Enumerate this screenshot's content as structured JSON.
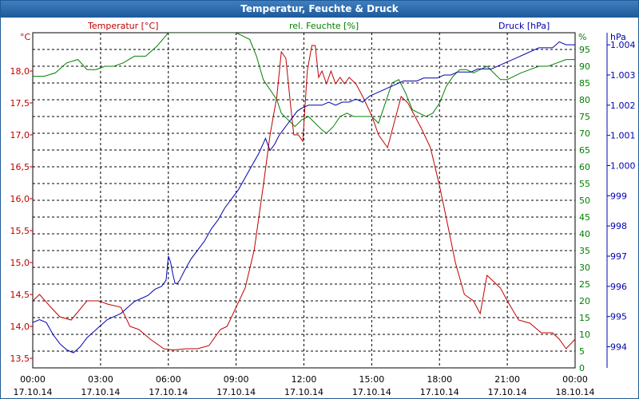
{
  "window": {
    "title": "Temperatur, Feuchte & Druck"
  },
  "colors": {
    "temperature": "#c00000",
    "humidity": "#008000",
    "pressure": "#0000b0",
    "grid": "#000000",
    "titlebar": "#2a66a8"
  },
  "chart_data": {
    "type": "line",
    "title": "Temperatur, Feuchte & Druck",
    "grid": true,
    "x_ticks": [
      {
        "time": "00:00",
        "date": "17.10.14"
      },
      {
        "time": "03:00",
        "date": "17.10.14"
      },
      {
        "time": "06:00",
        "date": "17.10.14"
      },
      {
        "time": "09:00",
        "date": "17.10.14"
      },
      {
        "time": "12:00",
        "date": "17.10.14"
      },
      {
        "time": "15:00",
        "date": "17.10.14"
      },
      {
        "time": "18:00",
        "date": "17.10.14"
      },
      {
        "time": "21:00",
        "date": "17.10.14"
      },
      {
        "time": "00:00",
        "date": "18.10.14"
      }
    ],
    "x_range_hours": [
      0,
      24
    ],
    "axes": {
      "temperature": {
        "label": "Temperatur [°C]",
        "unit": "°C",
        "range": [
          13.35,
          18.6
        ],
        "ticks": [
          13.5,
          14.0,
          14.5,
          15.0,
          15.5,
          16.0,
          16.5,
          17.0,
          17.5,
          18.0
        ],
        "tick_labels": [
          "13,5",
          "14,0",
          "14,5",
          "15,0",
          "15,5",
          "16,0",
          "16,5",
          "17,0",
          "17,5",
          "18,0"
        ]
      },
      "humidity": {
        "label": "rel. Feuchte [%]",
        "unit": "%",
        "range": [
          0,
          100
        ],
        "ticks": [
          0,
          5,
          10,
          15,
          20,
          25,
          30,
          35,
          40,
          45,
          50,
          55,
          60,
          65,
          70,
          75,
          80,
          85,
          90,
          95
        ],
        "tick_labels": [
          "0",
          "5",
          "10",
          "15",
          "20",
          "25",
          "30",
          "35",
          "40",
          "45",
          "50",
          "55",
          "60",
          "65",
          "70",
          "75",
          "80",
          "85",
          "90",
          "95"
        ]
      },
      "pressure": {
        "label": "Druck [hPa]",
        "unit": "hPa",
        "range": [
          993.3,
          1004.4
        ],
        "ticks": [
          994,
          995,
          996,
          997,
          998,
          999,
          1000,
          1001,
          1002,
          1003,
          1004
        ],
        "tick_labels": [
          "994",
          "995",
          "996",
          "997",
          "998",
          "999",
          "1.000",
          "1.001",
          "1.002",
          "1.003",
          "1.004"
        ]
      }
    },
    "series": [
      {
        "name": "Temperatur [°C]",
        "axis": "temperature",
        "x": [
          0,
          0.3,
          0.8,
          1.2,
          1.7,
          2.4,
          2.9,
          3.3,
          3.9,
          4.3,
          4.7,
          5.2,
          5.8,
          6.2,
          6.8,
          7.3,
          7.8,
          8.3,
          8.6,
          9.0,
          9.4,
          9.8,
          10.2,
          10.5,
          10.8,
          11.0,
          11.2,
          11.4,
          11.55,
          11.75,
          11.95,
          12.15,
          12.35,
          12.5,
          12.65,
          12.8,
          13.0,
          13.2,
          13.4,
          13.6,
          13.8,
          14.0,
          14.3,
          14.6,
          15.0,
          15.3,
          15.7,
          16.0,
          16.3,
          16.6,
          16.9,
          17.2,
          17.6,
          18.0,
          18.3,
          18.7,
          19.1,
          19.5,
          19.8,
          20.1,
          20.4,
          20.7,
          21.0,
          21.5,
          22.0,
          22.5,
          23.0,
          23.3,
          23.6,
          24.0
        ],
        "y": [
          14.4,
          14.5,
          14.3,
          14.15,
          14.1,
          14.4,
          14.4,
          14.35,
          14.3,
          14.0,
          13.95,
          13.8,
          13.65,
          13.63,
          13.65,
          13.65,
          13.7,
          13.95,
          14.0,
          14.3,
          14.6,
          15.2,
          16.2,
          17.0,
          17.6,
          18.3,
          18.2,
          17.5,
          17.0,
          17.0,
          16.9,
          18.0,
          18.4,
          18.4,
          17.9,
          18.0,
          17.8,
          18.0,
          17.8,
          17.9,
          17.8,
          17.9,
          17.8,
          17.6,
          17.3,
          17.0,
          16.8,
          17.2,
          17.6,
          17.5,
          17.3,
          17.1,
          16.8,
          16.2,
          15.7,
          15.0,
          14.5,
          14.4,
          14.2,
          14.8,
          14.7,
          14.6,
          14.4,
          14.1,
          14.05,
          13.9,
          13.9,
          13.8,
          13.65,
          13.8
        ]
      },
      {
        "name": "rel. Feuchte [%]",
        "axis": "humidity",
        "x": [
          0,
          0.5,
          1.0,
          1.5,
          2.0,
          2.4,
          2.8,
          3.2,
          3.6,
          4.0,
          4.5,
          5.0,
          5.5,
          6.0,
          6.3,
          6.6,
          7.0,
          7.5,
          8.0,
          8.3,
          8.6,
          9.0,
          9.3,
          9.6,
          9.9,
          10.2,
          10.5,
          10.8,
          11.0,
          11.3,
          11.6,
          11.9,
          12.2,
          12.5,
          12.8,
          13.0,
          13.3,
          13.6,
          13.9,
          14.2,
          14.5,
          15.0,
          15.3,
          15.6,
          15.9,
          16.2,
          16.5,
          16.8,
          17.1,
          17.4,
          17.7,
          18.0,
          18.3,
          18.6,
          18.9,
          19.2,
          19.5,
          19.8,
          20.1,
          20.4,
          20.7,
          21.0,
          21.3,
          21.6,
          22.0,
          22.4,
          22.8,
          23.2,
          23.6,
          24.0
        ],
        "y": [
          87,
          87,
          88,
          91,
          92,
          89,
          89,
          90,
          90,
          91,
          93,
          93,
          96,
          100,
          100,
          100,
          100,
          100,
          100,
          100,
          100,
          100,
          99,
          98,
          93,
          86,
          83,
          80,
          76,
          74,
          72,
          74,
          75,
          73,
          71,
          70,
          72,
          75,
          76,
          75,
          75,
          75,
          73,
          79,
          85,
          86,
          82,
          77,
          76,
          75,
          76,
          79,
          84,
          87,
          89,
          89,
          88,
          89,
          90,
          88,
          86,
          86,
          87,
          88,
          89,
          90,
          90,
          91,
          92,
          92
        ]
      },
      {
        "name": "Druck [hPa]",
        "axis": "pressure",
        "x": [
          0,
          0.3,
          0.6,
          0.9,
          1.2,
          1.5,
          1.8,
          2.1,
          2.4,
          2.7,
          3.0,
          3.3,
          3.6,
          3.9,
          4.2,
          4.5,
          4.8,
          5.1,
          5.4,
          5.7,
          5.9,
          6.0,
          6.1,
          6.2,
          6.3,
          6.4,
          6.5,
          6.7,
          7.0,
          7.3,
          7.6,
          7.9,
          8.2,
          8.5,
          8.8,
          9.1,
          9.4,
          9.7,
          10.0,
          10.3,
          10.5,
          10.7,
          10.9,
          11.1,
          11.3,
          11.5,
          11.7,
          11.9,
          12.2,
          12.5,
          12.8,
          13.1,
          13.4,
          13.7,
          14.0,
          14.3,
          14.6,
          14.9,
          15.2,
          15.5,
          15.8,
          16.1,
          16.4,
          16.7,
          17.0,
          17.3,
          17.6,
          17.9,
          18.2,
          18.5,
          18.8,
          19.1,
          19.4,
          19.7,
          20.0,
          20.3,
          20.6,
          20.9,
          21.2,
          21.5,
          21.8,
          22.1,
          22.4,
          22.7,
          23.0,
          23.3,
          23.6,
          24.0
        ],
        "y": [
          994.8,
          994.9,
          994.8,
          994.4,
          994.1,
          993.9,
          993.8,
          994.0,
          994.3,
          994.5,
          994.7,
          994.9,
          995.0,
          995.1,
          995.3,
          995.5,
          995.6,
          995.7,
          995.9,
          996.0,
          996.2,
          997.0,
          996.8,
          996.4,
          996.1,
          996.1,
          996.2,
          996.5,
          996.9,
          997.2,
          997.5,
          997.9,
          998.2,
          998.6,
          998.9,
          999.2,
          999.6,
          1000.0,
          1000.4,
          1000.9,
          1000.5,
          1000.7,
          1001.0,
          1001.2,
          1001.4,
          1001.6,
          1001.8,
          1001.9,
          1002.0,
          1002.0,
          1002.0,
          1002.1,
          1002.0,
          1002.1,
          1002.1,
          1002.2,
          1002.1,
          1002.3,
          1002.4,
          1002.5,
          1002.6,
          1002.7,
          1002.8,
          1002.8,
          1002.8,
          1002.9,
          1002.9,
          1002.9,
          1003.0,
          1003.0,
          1003.1,
          1003.1,
          1003.1,
          1003.2,
          1003.2,
          1003.2,
          1003.3,
          1003.4,
          1003.5,
          1003.6,
          1003.7,
          1003.8,
          1003.9,
          1003.9,
          1003.9,
          1004.1,
          1004.0,
          1004.0
        ]
      }
    ]
  }
}
